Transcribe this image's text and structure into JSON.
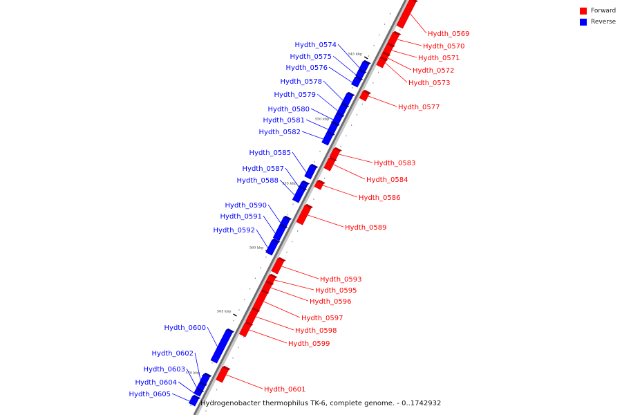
{
  "colors": {
    "forward": "#ff0000",
    "forward_dark": "#b30000",
    "reverse": "#0000ff",
    "reverse_dark": "#0000a0"
  },
  "legend": [
    {
      "label": "Forward",
      "color": "#ff0000"
    },
    {
      "label": "Reverse",
      "color": "#0000ff"
    }
  ],
  "caption": "Hydrogenobacter thermophilus TK-6, complete genome. - 0..1742932",
  "scale_marks": [
    "545 kbp",
    "550 kbp",
    "555 kbp",
    "560 kbp",
    "565 kbp",
    "570 kbp"
  ],
  "genes": [
    {
      "id": "Hydth_0569",
      "strand": "forward"
    },
    {
      "id": "Hydth_0570",
      "strand": "forward"
    },
    {
      "id": "Hydth_0571",
      "strand": "forward"
    },
    {
      "id": "Hydth_0572",
      "strand": "forward"
    },
    {
      "id": "Hydth_0573",
      "strand": "forward"
    },
    {
      "id": "Hydth_0574",
      "strand": "reverse"
    },
    {
      "id": "Hydth_0575",
      "strand": "reverse"
    },
    {
      "id": "Hydth_0576",
      "strand": "reverse"
    },
    {
      "id": "Hydth_0577",
      "strand": "forward"
    },
    {
      "id": "Hydth_0578",
      "strand": "reverse"
    },
    {
      "id": "Hydth_0579",
      "strand": "reverse"
    },
    {
      "id": "Hydth_0580",
      "strand": "reverse"
    },
    {
      "id": "Hydth_0581",
      "strand": "reverse"
    },
    {
      "id": "Hydth_0582",
      "strand": "reverse"
    },
    {
      "id": "Hydth_0583",
      "strand": "forward"
    },
    {
      "id": "Hydth_0584",
      "strand": "forward"
    },
    {
      "id": "Hydth_0585",
      "strand": "reverse"
    },
    {
      "id": "Hydth_0586",
      "strand": "forward"
    },
    {
      "id": "Hydth_0587",
      "strand": "reverse"
    },
    {
      "id": "Hydth_0588",
      "strand": "reverse"
    },
    {
      "id": "Hydth_0589",
      "strand": "forward"
    },
    {
      "id": "Hydth_0590",
      "strand": "reverse"
    },
    {
      "id": "Hydth_0591",
      "strand": "reverse"
    },
    {
      "id": "Hydth_0592",
      "strand": "reverse"
    },
    {
      "id": "Hydth_0593",
      "strand": "forward"
    },
    {
      "id": "Hydth_0595",
      "strand": "forward"
    },
    {
      "id": "Hydth_0596",
      "strand": "forward"
    },
    {
      "id": "Hydth_0597",
      "strand": "forward"
    },
    {
      "id": "Hydth_0598",
      "strand": "forward"
    },
    {
      "id": "Hydth_0599",
      "strand": "forward"
    },
    {
      "id": "Hydth_0600",
      "strand": "reverse"
    },
    {
      "id": "Hydth_0601",
      "strand": "forward"
    },
    {
      "id": "Hydth_0602",
      "strand": "reverse"
    },
    {
      "id": "Hydth_0603",
      "strand": "reverse"
    },
    {
      "id": "Hydth_0604",
      "strand": "reverse"
    },
    {
      "id": "Hydth_0605",
      "strand": "reverse"
    }
  ]
}
